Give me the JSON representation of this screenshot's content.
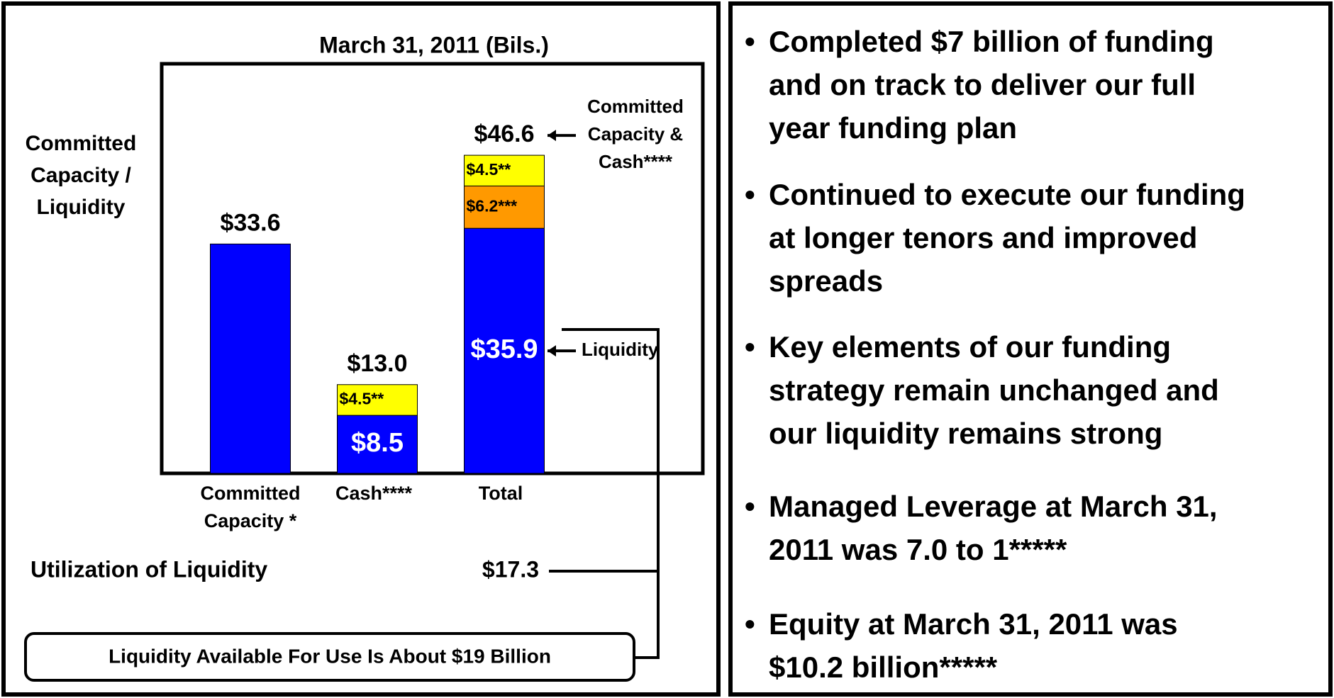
{
  "chart_data": {
    "type": "bar",
    "stacked": true,
    "title": "March 31, 2011 (Bils.)",
    "y_label": [
      "Committed",
      "Capacity /",
      "Liquidity"
    ],
    "categories": [
      [
        "Committed",
        "Capacity *"
      ],
      [
        "Cash****"
      ],
      [
        "Total"
      ]
    ],
    "ylim": [
      0,
      60
    ],
    "series": [
      {
        "color": "#0000ff",
        "values": [
          33.6,
          8.5,
          35.9
        ],
        "value_labels": [
          "$33.6",
          "$8.5",
          "$35.9"
        ]
      },
      {
        "color": "#ff9900",
        "values": [
          null,
          null,
          6.2
        ],
        "value_labels": [
          null,
          null,
          "$6.2***"
        ]
      },
      {
        "color": "#ffff00",
        "values": [
          null,
          4.5,
          4.5
        ],
        "value_labels": [
          null,
          "$4.5**",
          "$4.5**"
        ]
      }
    ],
    "totals": [
      null,
      13.0,
      46.6
    ],
    "total_labels": [
      null,
      "$13.0",
      "$46.6"
    ],
    "annotations": [
      [
        "Committed",
        "Capacity &",
        "Cash****"
      ],
      [
        "Liquidity"
      ]
    ],
    "utilization": {
      "label": "Utilization of Liquidity",
      "value": "$17.3"
    },
    "callout": "Liquidity Available For Use Is About $19 Billion"
  },
  "bullets": [
    [
      "Completed $7 billion of funding",
      "and on track to deliver our full",
      "year funding plan"
    ],
    [
      "Continued to execute our funding",
      "at longer tenors and improved",
      "spreads"
    ],
    [
      "Key elements of our funding",
      "strategy remain unchanged and",
      "our liquidity remains strong"
    ],
    [
      "Managed Leverage at March 31,",
      "2011 was 7.0 to 1*****"
    ],
    [
      "Equity at March 31, 2011 was",
      "$10.2 billion*****"
    ]
  ]
}
